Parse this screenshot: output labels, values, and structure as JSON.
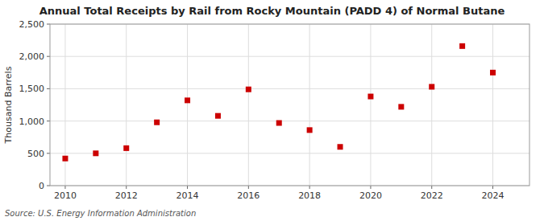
{
  "chart_data": {
    "type": "scatter",
    "title": "Annual Total Receipts by Rail from Rocky Mountain (PADD 4) of Normal Butane",
    "ylabel": "Thousand Barrels",
    "source": "Source: U.S. Energy Information Administration",
    "x": [
      2010,
      2011,
      2012,
      2013,
      2014,
      2015,
      2016,
      2017,
      2018,
      2019,
      2020,
      2021,
      2022,
      2023,
      2024
    ],
    "values": [
      420,
      500,
      580,
      980,
      1320,
      1080,
      1490,
      970,
      860,
      600,
      1380,
      1220,
      1530,
      2160,
      1750
    ],
    "color": "#cc0000",
    "marker": "square",
    "xlim": [
      2009.5,
      2025.2
    ],
    "ylim": [
      0,
      2500
    ],
    "xticks": [
      2010,
      2012,
      2014,
      2016,
      2018,
      2020,
      2022,
      2024
    ],
    "yticks": [
      0,
      500,
      {
        "value": 1000,
        "label": "1,000"
      },
      {
        "value": 1500,
        "label": "1,500"
      },
      {
        "value": 2000,
        "label": "2,000"
      },
      {
        "value": 2500,
        "label": "2,500"
      }
    ],
    "grid": true
  }
}
